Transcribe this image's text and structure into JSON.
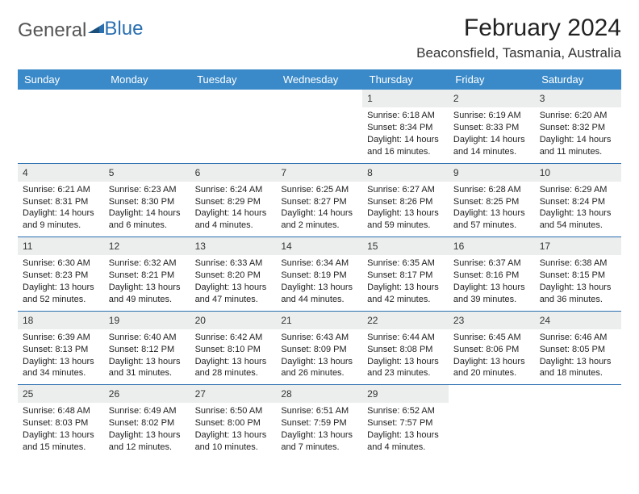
{
  "logo": {
    "text1": "General",
    "text2": "Blue"
  },
  "title": "February 2024",
  "location": "Beaconsfield, Tasmania, Australia",
  "colors": {
    "header_bg": "#3a8ac9",
    "header_text": "#ffffff",
    "daynum_bg": "#eceded",
    "border": "#2a6fb0",
    "logo_gray": "#555555",
    "logo_blue": "#2a6fb0"
  },
  "weekdays": [
    "Sunday",
    "Monday",
    "Tuesday",
    "Wednesday",
    "Thursday",
    "Friday",
    "Saturday"
  ],
  "weeks": [
    [
      null,
      null,
      null,
      null,
      {
        "n": "1",
        "sr": "6:18 AM",
        "ss": "8:34 PM",
        "dl": "14 hours and 16 minutes."
      },
      {
        "n": "2",
        "sr": "6:19 AM",
        "ss": "8:33 PM",
        "dl": "14 hours and 14 minutes."
      },
      {
        "n": "3",
        "sr": "6:20 AM",
        "ss": "8:32 PM",
        "dl": "14 hours and 11 minutes."
      }
    ],
    [
      {
        "n": "4",
        "sr": "6:21 AM",
        "ss": "8:31 PM",
        "dl": "14 hours and 9 minutes."
      },
      {
        "n": "5",
        "sr": "6:23 AM",
        "ss": "8:30 PM",
        "dl": "14 hours and 6 minutes."
      },
      {
        "n": "6",
        "sr": "6:24 AM",
        "ss": "8:29 PM",
        "dl": "14 hours and 4 minutes."
      },
      {
        "n": "7",
        "sr": "6:25 AM",
        "ss": "8:27 PM",
        "dl": "14 hours and 2 minutes."
      },
      {
        "n": "8",
        "sr": "6:27 AM",
        "ss": "8:26 PM",
        "dl": "13 hours and 59 minutes."
      },
      {
        "n": "9",
        "sr": "6:28 AM",
        "ss": "8:25 PM",
        "dl": "13 hours and 57 minutes."
      },
      {
        "n": "10",
        "sr": "6:29 AM",
        "ss": "8:24 PM",
        "dl": "13 hours and 54 minutes."
      }
    ],
    [
      {
        "n": "11",
        "sr": "6:30 AM",
        "ss": "8:23 PM",
        "dl": "13 hours and 52 minutes."
      },
      {
        "n": "12",
        "sr": "6:32 AM",
        "ss": "8:21 PM",
        "dl": "13 hours and 49 minutes."
      },
      {
        "n": "13",
        "sr": "6:33 AM",
        "ss": "8:20 PM",
        "dl": "13 hours and 47 minutes."
      },
      {
        "n": "14",
        "sr": "6:34 AM",
        "ss": "8:19 PM",
        "dl": "13 hours and 44 minutes."
      },
      {
        "n": "15",
        "sr": "6:35 AM",
        "ss": "8:17 PM",
        "dl": "13 hours and 42 minutes."
      },
      {
        "n": "16",
        "sr": "6:37 AM",
        "ss": "8:16 PM",
        "dl": "13 hours and 39 minutes."
      },
      {
        "n": "17",
        "sr": "6:38 AM",
        "ss": "8:15 PM",
        "dl": "13 hours and 36 minutes."
      }
    ],
    [
      {
        "n": "18",
        "sr": "6:39 AM",
        "ss": "8:13 PM",
        "dl": "13 hours and 34 minutes."
      },
      {
        "n": "19",
        "sr": "6:40 AM",
        "ss": "8:12 PM",
        "dl": "13 hours and 31 minutes."
      },
      {
        "n": "20",
        "sr": "6:42 AM",
        "ss": "8:10 PM",
        "dl": "13 hours and 28 minutes."
      },
      {
        "n": "21",
        "sr": "6:43 AM",
        "ss": "8:09 PM",
        "dl": "13 hours and 26 minutes."
      },
      {
        "n": "22",
        "sr": "6:44 AM",
        "ss": "8:08 PM",
        "dl": "13 hours and 23 minutes."
      },
      {
        "n": "23",
        "sr": "6:45 AM",
        "ss": "8:06 PM",
        "dl": "13 hours and 20 minutes."
      },
      {
        "n": "24",
        "sr": "6:46 AM",
        "ss": "8:05 PM",
        "dl": "13 hours and 18 minutes."
      }
    ],
    [
      {
        "n": "25",
        "sr": "6:48 AM",
        "ss": "8:03 PM",
        "dl": "13 hours and 15 minutes."
      },
      {
        "n": "26",
        "sr": "6:49 AM",
        "ss": "8:02 PM",
        "dl": "13 hours and 12 minutes."
      },
      {
        "n": "27",
        "sr": "6:50 AM",
        "ss": "8:00 PM",
        "dl": "13 hours and 10 minutes."
      },
      {
        "n": "28",
        "sr": "6:51 AM",
        "ss": "7:59 PM",
        "dl": "13 hours and 7 minutes."
      },
      {
        "n": "29",
        "sr": "6:52 AM",
        "ss": "7:57 PM",
        "dl": "13 hours and 4 minutes."
      },
      null,
      null
    ]
  ],
  "labels": {
    "sunrise": "Sunrise:",
    "sunset": "Sunset:",
    "daylight": "Daylight:"
  }
}
